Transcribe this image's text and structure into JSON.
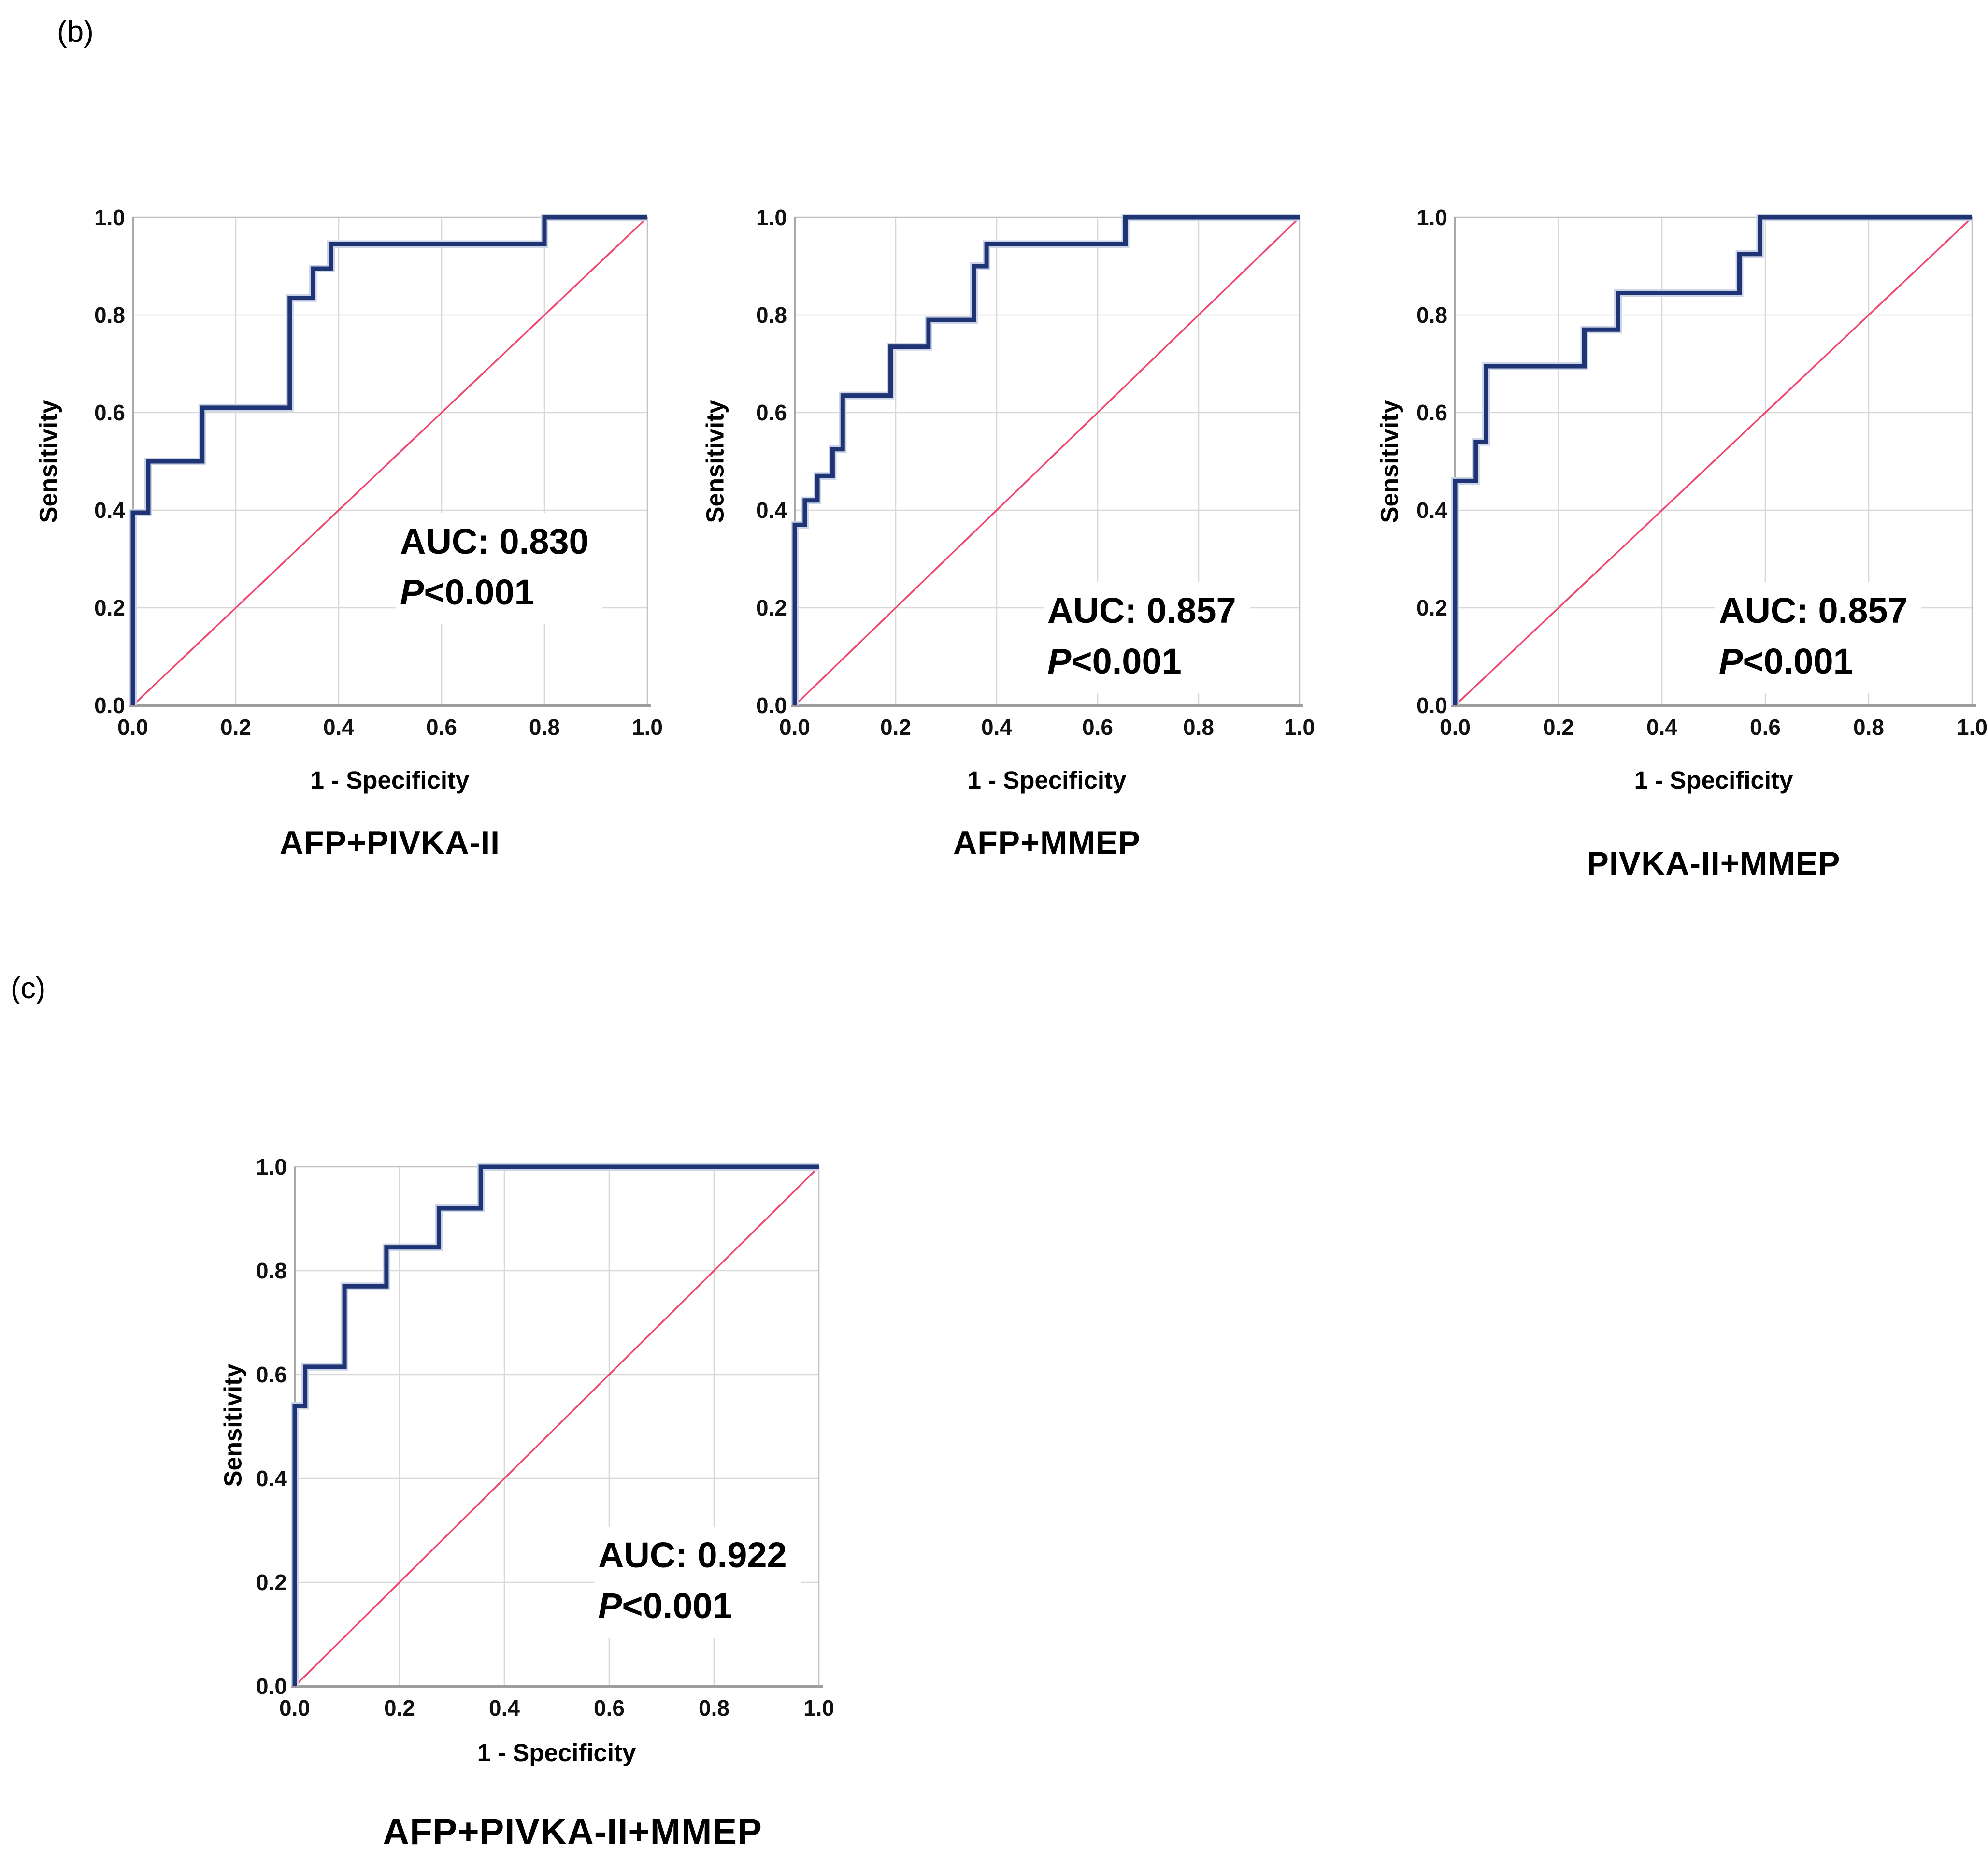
{
  "figure": {
    "panel_b_label": "(b)",
    "panel_c_label": "(c)",
    "background": "#ffffff"
  },
  "colors": {
    "curve": "#1e3474",
    "curve_halo": "#ccd4e8",
    "diagonal": "#ee4770",
    "grid": "#d8d8d8",
    "border": "#c2c2c2",
    "axis_bottom": "#9e9e9e",
    "axis_left": "#a9a9a9",
    "text": "#000000"
  },
  "chart_data": [
    {
      "type": "line",
      "subtype": "roc-step-curve",
      "panel": "b",
      "title": "AFP+PIVKA-II",
      "xlabel": "1 - Specificity",
      "ylabel": "Sensitivity",
      "xlim": [
        0.0,
        1.0
      ],
      "ylim": [
        0.0,
        1.0
      ],
      "x_ticks": [
        "0.0",
        "0.2",
        "0.4",
        "0.6",
        "0.8",
        "1.0"
      ],
      "y_ticks": [
        "0.0",
        "0.2",
        "0.4",
        "0.6",
        "0.8",
        "1.0"
      ],
      "grid": "on",
      "legend": "none",
      "annotation": {
        "auc_text": "AUC: 0.830",
        "auc": 0.83,
        "p_prefix": "P",
        "p_value": "<0.001"
      },
      "reference_diagonal": [
        [
          0,
          0
        ],
        [
          1,
          1
        ]
      ],
      "series": [
        {
          "name": "ROC curve",
          "points": [
            [
              0,
              0
            ],
            [
              0,
              0.395
            ],
            [
              0.03,
              0.395
            ],
            [
              0.03,
              0.5
            ],
            [
              0.135,
              0.5
            ],
            [
              0.135,
              0.61
            ],
            [
              0.305,
              0.61
            ],
            [
              0.305,
              0.835
            ],
            [
              0.35,
              0.835
            ],
            [
              0.35,
              0.895
            ],
            [
              0.385,
              0.895
            ],
            [
              0.385,
              0.945
            ],
            [
              0.8,
              0.945
            ],
            [
              0.8,
              1.0
            ],
            [
              1.0,
              1.0
            ]
          ]
        }
      ]
    },
    {
      "type": "line",
      "subtype": "roc-step-curve",
      "panel": "b",
      "title": "AFP+MMEP",
      "xlabel": "1 - Specificity",
      "ylabel": "Sensitivity",
      "xlim": [
        0.0,
        1.0
      ],
      "ylim": [
        0.0,
        1.0
      ],
      "x_ticks": [
        "0.0",
        "0.2",
        "0.4",
        "0.6",
        "0.8",
        "1.0"
      ],
      "y_ticks": [
        "0.0",
        "0.2",
        "0.4",
        "0.6",
        "0.8",
        "1.0"
      ],
      "grid": "on",
      "legend": "none",
      "annotation": {
        "auc_text": "AUC: 0.857",
        "auc": 0.857,
        "p_prefix": "P",
        "p_value": "<0.001"
      },
      "reference_diagonal": [
        [
          0,
          0
        ],
        [
          1,
          1
        ]
      ],
      "series": [
        {
          "name": "ROC curve",
          "points": [
            [
              0,
              0
            ],
            [
              0,
              0.37
            ],
            [
              0.02,
              0.37
            ],
            [
              0.02,
              0.42
            ],
            [
              0.045,
              0.42
            ],
            [
              0.045,
              0.47
            ],
            [
              0.075,
              0.47
            ],
            [
              0.075,
              0.525
            ],
            [
              0.095,
              0.525
            ],
            [
              0.095,
              0.635
            ],
            [
              0.19,
              0.635
            ],
            [
              0.19,
              0.735
            ],
            [
              0.265,
              0.735
            ],
            [
              0.265,
              0.79
            ],
            [
              0.355,
              0.79
            ],
            [
              0.355,
              0.9
            ],
            [
              0.38,
              0.9
            ],
            [
              0.38,
              0.945
            ],
            [
              0.655,
              0.945
            ],
            [
              0.655,
              1.0
            ],
            [
              1.0,
              1.0
            ]
          ]
        }
      ]
    },
    {
      "type": "line",
      "subtype": "roc-step-curve",
      "panel": "b",
      "title": "PIVKA-II+MMEP",
      "xlabel": "1 - Specificity",
      "ylabel": "Sensitivity",
      "xlim": [
        0.0,
        1.0
      ],
      "ylim": [
        0.0,
        1.0
      ],
      "x_ticks": [
        "0.0",
        "0.2",
        "0.4",
        "0.6",
        "0.8",
        "1.0"
      ],
      "y_ticks": [
        "0.0",
        "0.2",
        "0.4",
        "0.6",
        "0.8",
        "1.0"
      ],
      "grid": "on",
      "legend": "none",
      "annotation": {
        "auc_text": "AUC: 0.857",
        "auc": 0.857,
        "p_prefix": "P",
        "p_value": "<0.001"
      },
      "reference_diagonal": [
        [
          0,
          0
        ],
        [
          1,
          1
        ]
      ],
      "series": [
        {
          "name": "ROC curve",
          "points": [
            [
              0,
              0
            ],
            [
              0,
              0.46
            ],
            [
              0.04,
              0.46
            ],
            [
              0.04,
              0.54
            ],
            [
              0.06,
              0.54
            ],
            [
              0.06,
              0.695
            ],
            [
              0.25,
              0.695
            ],
            [
              0.25,
              0.77
            ],
            [
              0.315,
              0.77
            ],
            [
              0.315,
              0.845
            ],
            [
              0.55,
              0.845
            ],
            [
              0.55,
              0.925
            ],
            [
              0.59,
              0.925
            ],
            [
              0.59,
              1.0
            ],
            [
              1.0,
              1.0
            ]
          ]
        }
      ]
    },
    {
      "type": "line",
      "subtype": "roc-step-curve",
      "panel": "c",
      "title": "AFP+PIVKA-II+MMEP",
      "xlabel": "1 - Specificity",
      "ylabel": "Sensitivity",
      "xlim": [
        0.0,
        1.0
      ],
      "ylim": [
        0.0,
        1.0
      ],
      "x_ticks": [
        "0.0",
        "0.2",
        "0.4",
        "0.6",
        "0.8",
        "1.0"
      ],
      "y_ticks": [
        "0.0",
        "0.2",
        "0.4",
        "0.6",
        "0.8",
        "1.0"
      ],
      "grid": "on",
      "legend": "none",
      "annotation": {
        "auc_text": "AUC: 0.922",
        "auc": 0.922,
        "p_prefix": "P",
        "p_value": "<0.001"
      },
      "reference_diagonal": [
        [
          0,
          0
        ],
        [
          1,
          1
        ]
      ],
      "series": [
        {
          "name": "ROC curve",
          "points": [
            [
              0,
              0
            ],
            [
              0,
              0.54
            ],
            [
              0.02,
              0.54
            ],
            [
              0.02,
              0.615
            ],
            [
              0.095,
              0.615
            ],
            [
              0.095,
              0.77
            ],
            [
              0.175,
              0.77
            ],
            [
              0.175,
              0.845
            ],
            [
              0.275,
              0.845
            ],
            [
              0.275,
              0.92
            ],
            [
              0.355,
              0.92
            ],
            [
              0.355,
              1.0
            ],
            [
              1.0,
              1.0
            ]
          ]
        }
      ]
    }
  ]
}
